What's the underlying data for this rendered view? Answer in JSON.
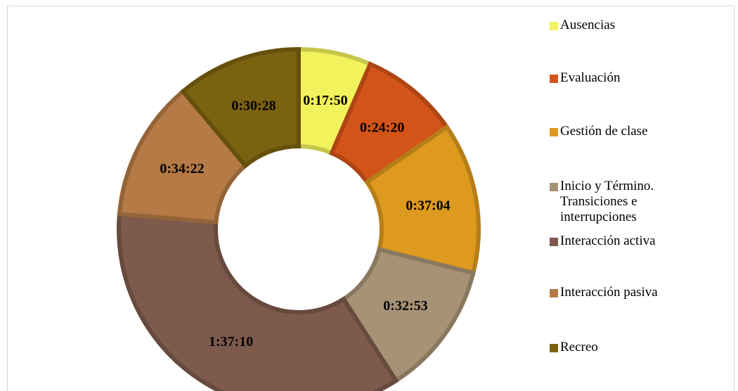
{
  "chart_data": {
    "type": "donut",
    "title": "",
    "legend_position": "right",
    "categories": [
      "Ausencias",
      "Evaluación",
      "Gestión de clase",
      "Inicio y Término. Transiciones e interrupciones",
      "Interacción activa",
      "Interacción pasiva",
      "Recreo"
    ],
    "labels": [
      "0:17:50",
      "0:24:20",
      "0:37:04",
      "0:32:53",
      "1:37:10",
      "0:34:22",
      "0:30:28"
    ],
    "values_seconds": [
      1070,
      1460,
      2224,
      1973,
      5830,
      2062,
      1828
    ],
    "colors": [
      "#f2f25c",
      "#d35418",
      "#dd9a1e",
      "#a79275",
      "#7d5a4c",
      "#b57a45",
      "#7b6210"
    ]
  }
}
